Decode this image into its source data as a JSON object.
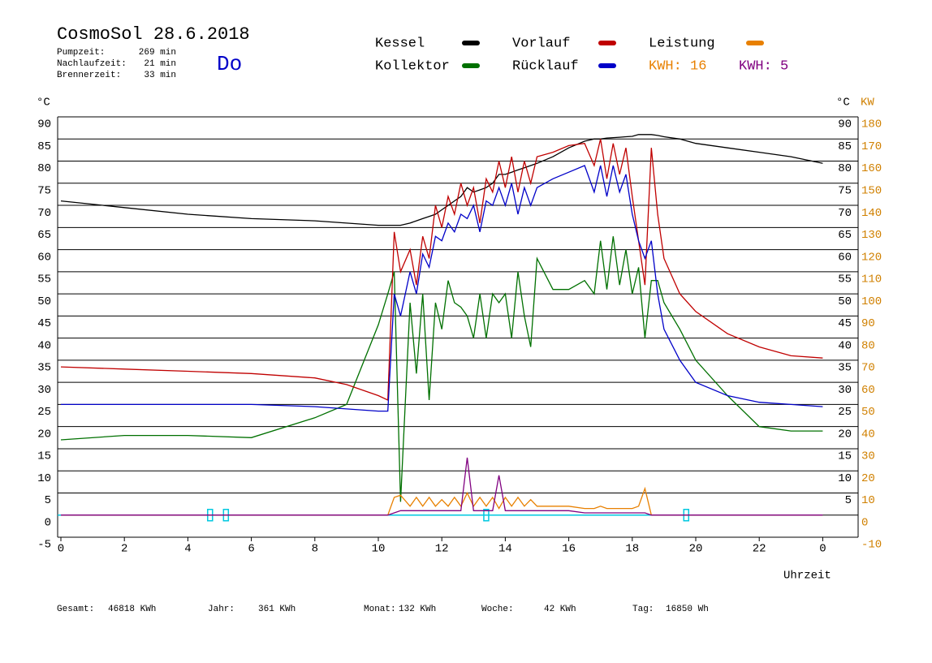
{
  "chart_data": {
    "type": "line",
    "title": "CosmoSol 28.6.2018",
    "weekday": "Do",
    "info": [
      [
        "Pumpzeit:",
        "269 min"
      ],
      [
        "Nachlaufzeit:",
        "21 min"
      ],
      [
        "Brennerzeit:",
        "33 min"
      ]
    ],
    "x": [
      0,
      2,
      4,
      6,
      8,
      9,
      10,
      10.3,
      10.5,
      10.7,
      11,
      11.2,
      11.4,
      11.6,
      11.8,
      12,
      12.2,
      12.4,
      12.6,
      12.8,
      13,
      13.2,
      13.4,
      13.6,
      13.8,
      14,
      14.2,
      14.4,
      14.6,
      14.8,
      15,
      15.5,
      16,
      16.5,
      16.8,
      17,
      17.2,
      17.4,
      17.6,
      17.8,
      18,
      18.2,
      18.4,
      18.6,
      18.8,
      19,
      19.5,
      20,
      21,
      22,
      23,
      24
    ],
    "series": [
      {
        "name": "Kessel",
        "color": "#000000",
        "values": [
          71,
          69.5,
          68,
          67,
          66.5,
          66,
          65.5,
          65.5,
          65.5,
          65.5,
          66,
          66.5,
          67,
          67.5,
          68,
          69,
          70,
          71,
          72,
          74,
          73,
          73.5,
          74,
          75,
          77,
          77,
          77.5,
          78,
          78.5,
          79,
          79.5,
          81,
          83,
          84.5,
          85,
          85,
          85.2,
          85.3,
          85.4,
          85.5,
          85.6,
          86,
          86,
          86,
          85.8,
          85.5,
          85,
          84,
          83,
          82,
          81,
          79.5
        ]
      },
      {
        "name": "Kollektor",
        "color": "#007000",
        "values": [
          17,
          18,
          18,
          17.5,
          22,
          25,
          43,
          50,
          55,
          3,
          48,
          32,
          50,
          26,
          48,
          42,
          53,
          48,
          47,
          45,
          40,
          50,
          40,
          50,
          48,
          50,
          40,
          55,
          45,
          38,
          58,
          51,
          51,
          53,
          50,
          62,
          51,
          63,
          52,
          60,
          50,
          56,
          40,
          53,
          53,
          48,
          42,
          35,
          27,
          20,
          19,
          19
        ]
      },
      {
        "name": "Vorlauf",
        "color": "#c00000",
        "values": [
          33.5,
          33,
          32.5,
          32,
          31,
          29.5,
          27,
          26,
          64,
          55,
          60,
          52,
          63,
          58,
          70,
          65,
          72,
          68,
          75,
          70,
          74,
          66,
          76,
          73,
          80,
          74,
          81,
          73,
          80,
          75,
          81,
          82,
          83.5,
          84,
          79,
          85,
          76,
          84,
          77,
          83,
          72,
          62,
          52,
          83,
          68,
          58,
          50,
          46,
          41,
          38,
          36,
          35.5
        ]
      },
      {
        "name": "Rücklauf",
        "color": "#0000c8",
        "values": [
          25,
          25,
          25,
          25,
          24.5,
          24,
          23.5,
          23.5,
          50,
          45,
          55,
          50,
          59,
          56,
          63,
          62,
          66,
          64,
          68,
          67,
          70,
          64,
          71,
          70,
          74,
          70,
          75,
          68,
          74,
          70,
          74,
          76,
          77.5,
          79,
          73,
          79,
          72,
          79,
          73,
          77,
          68,
          62,
          58,
          62,
          50,
          42,
          35,
          30,
          27,
          25.5,
          25,
          24.5
        ]
      },
      {
        "name": "Leistung",
        "color": "#e88000",
        "axis": "y2",
        "values": [
          0,
          0,
          0,
          0,
          0,
          0,
          0,
          0,
          8,
          9,
          4,
          8,
          4,
          8,
          4,
          7,
          4,
          8,
          4,
          10,
          4,
          8,
          4,
          8,
          3,
          8,
          4,
          8,
          4,
          7,
          4,
          4,
          4,
          3,
          3,
          4,
          3,
          3,
          3,
          3,
          3,
          4,
          12,
          0,
          0,
          0,
          0,
          0,
          0,
          0,
          0,
          0
        ]
      },
      {
        "color": "#800080",
        "axis": "y2",
        "values": [
          0,
          0,
          0,
          0,
          0,
          0,
          0,
          0,
          1,
          2,
          2,
          2,
          2,
          2,
          2,
          2,
          2,
          2,
          2,
          26,
          2,
          2,
          2,
          2,
          18,
          2,
          2,
          2,
          2,
          2,
          2,
          2,
          2,
          1,
          1,
          1,
          1,
          1,
          1,
          1,
          1,
          1,
          1,
          0,
          0,
          0,
          0,
          0,
          0,
          0,
          0,
          0
        ]
      }
    ],
    "kwh_labels": [
      {
        "text": "KWH: 16",
        "color": "#e88000"
      },
      {
        "text": "KWH: 5",
        "color": "#800080"
      }
    ],
    "pulses": {
      "color": "#00c8e0",
      "x": [
        4.7,
        5.2,
        13.4,
        19.7
      ]
    },
    "xlim": [
      0,
      24
    ],
    "xticks": [
      0,
      2,
      4,
      6,
      8,
      10,
      12,
      14,
      16,
      18,
      20,
      22,
      {
        "value": 24,
        "label": "0"
      }
    ],
    "ylim": [
      -5,
      90
    ],
    "yticks": [
      90,
      85,
      80,
      75,
      70,
      65,
      60,
      55,
      50,
      45,
      40,
      35,
      30,
      25,
      20,
      15,
      10,
      5,
      0,
      -5
    ],
    "y2lim": [
      -10,
      180
    ],
    "y2ticks": [
      180,
      170,
      160,
      150,
      140,
      130,
      120,
      110,
      100,
      90,
      80,
      70,
      60,
      50,
      40,
      30,
      20,
      10,
      0,
      -10
    ],
    "y_label": "°C",
    "y2_label": "KW",
    "x_label": "Uhrzeit",
    "grid": true,
    "totals": [
      [
        "Gesamt:",
        "46818 KWh"
      ],
      [
        "Jahr:",
        "361 KWh"
      ],
      [
        "Monat:",
        "132 KWh"
      ],
      [
        "Woche:",
        "42 KWh"
      ],
      [
        "Tag:",
        "16850 Wh"
      ]
    ]
  }
}
